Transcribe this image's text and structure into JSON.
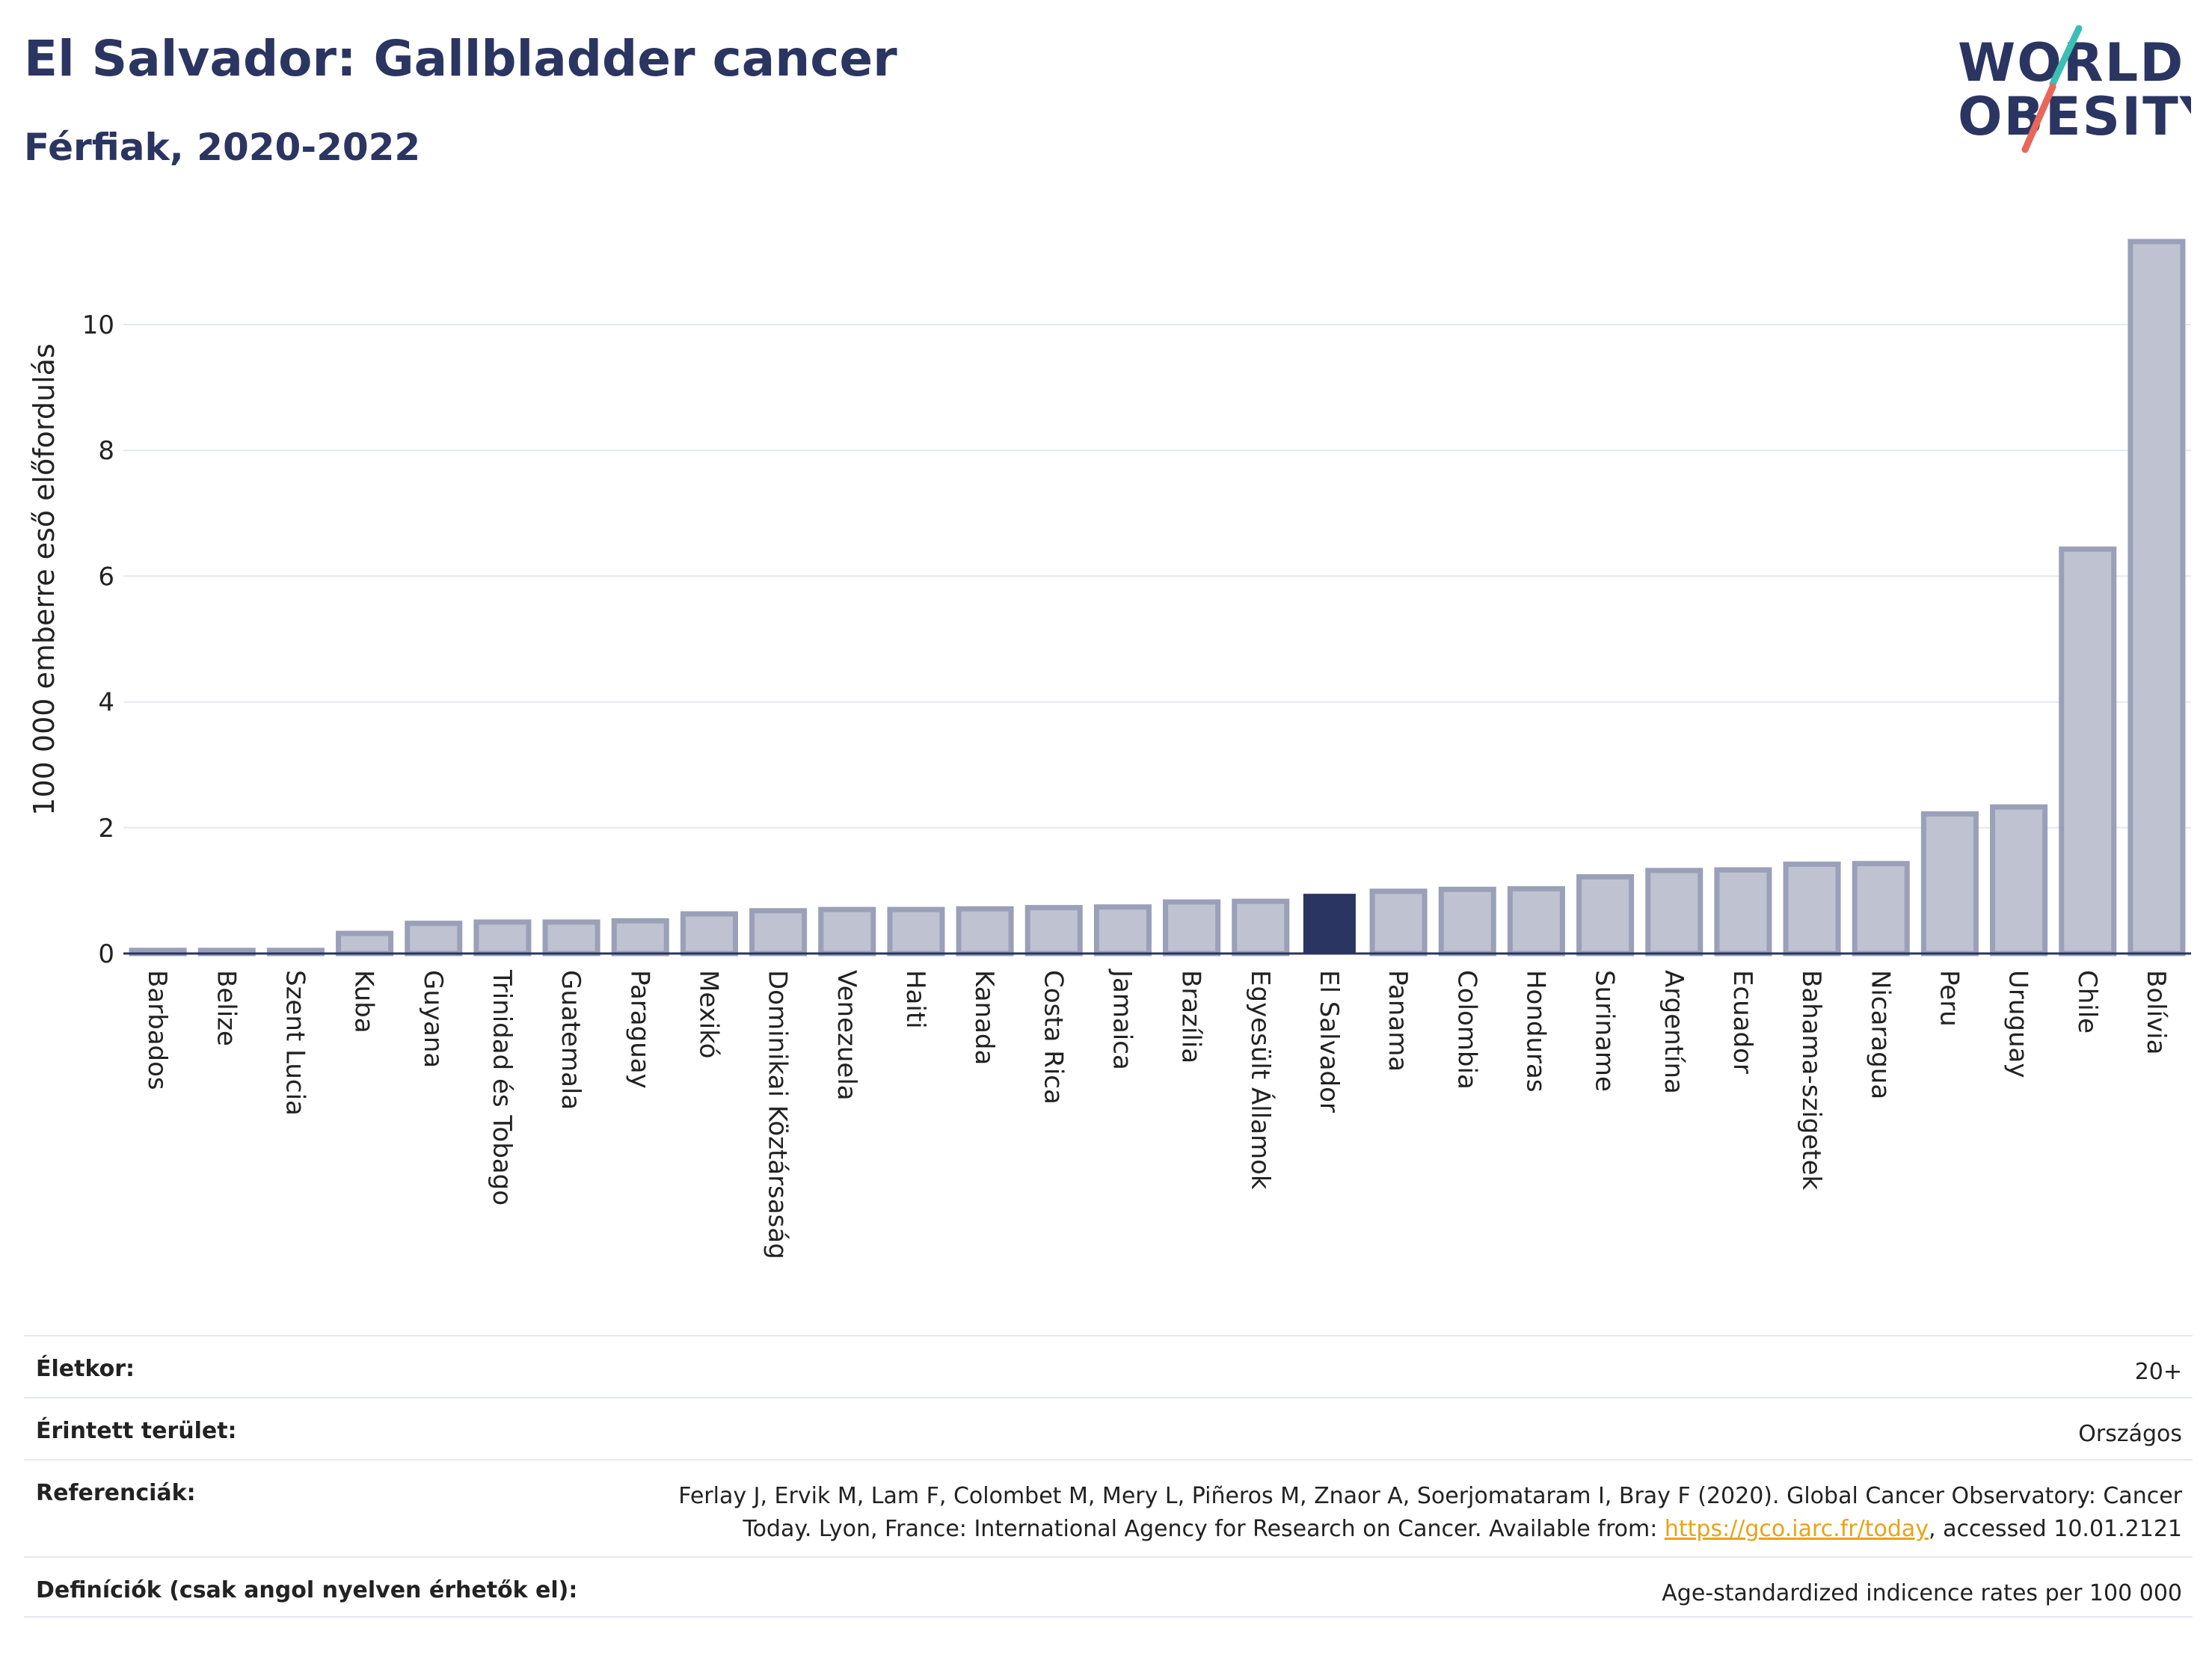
{
  "header": {
    "title": "El Salvador: Gallbladder cancer",
    "subtitle": "Férfiak, 2020-2022"
  },
  "logo": {
    "line1": "WORLD",
    "line2": "OBESITY",
    "colors": {
      "text": "#2b3561",
      "slash_top": "#3bbfb3",
      "slash_bottom": "#e8675a"
    }
  },
  "colors": {
    "bar": "#2b3561",
    "bar_other_fill": "#bfc2d0",
    "bar_other_stroke": "#9aa0b8",
    "highlight": "#2b3561"
  },
  "chart_data": {
    "type": "bar",
    "title": "",
    "xlabel": "",
    "ylabel": "100 000 emberre eső előfordulás",
    "ylim": [
      0,
      11.5
    ],
    "yticks": [
      0,
      2,
      4,
      6,
      8,
      10
    ],
    "grid": true,
    "highlight": "El Salvador",
    "categories": [
      "Barbados",
      "Belize",
      "Szent Lucia",
      "Kuba",
      "Guyana",
      "Trinidad és Tobago",
      "Guatemala",
      "Paraguay",
      "Mexikó",
      "Dominikai Köztársaság",
      "Venezuela",
      "Haiti",
      "Kanada",
      "Costa Rica",
      "Jamaica",
      "Brazília",
      "Egyesült Államok",
      "El Salvador",
      "Panama",
      "Colombia",
      "Honduras",
      "Suriname",
      "Argentína",
      "Ecuador",
      "Bahama-szigetek",
      "Nicaragua",
      "Peru",
      "Uruguay",
      "Chile",
      "Bolívia"
    ],
    "values": [
      0.05,
      0.05,
      0.05,
      0.32,
      0.48,
      0.5,
      0.5,
      0.52,
      0.63,
      0.68,
      0.7,
      0.7,
      0.71,
      0.73,
      0.74,
      0.82,
      0.83,
      0.95,
      0.99,
      1.02,
      1.03,
      1.22,
      1.32,
      1.33,
      1.42,
      1.43,
      2.22,
      2.33,
      6.43,
      11.32
    ]
  },
  "info": {
    "age_label": "Életkor:",
    "age_value": "20+",
    "area_label": "Érintett terület:",
    "area_value": "Országos",
    "ref_label": "Referenciák:",
    "ref_line1": "Ferlay J, Ervik M, Lam F, Colombet M, Mery L, Piñeros M, Znaor A, Soerjomataram I, Bray F (2020). Global Cancer Observatory: Cancer",
    "ref_line2_pre": "Today. Lyon, France: International Agency for Research on Cancer. Available from: ",
    "ref_link": "https://gco.iarc.fr/today",
    "ref_line2_post": ", accessed 10.01.2121",
    "def_label": "Definíciók (csak angol nyelven érhetők el):",
    "def_value": "Age-standardized indicence rates per 100 000"
  }
}
